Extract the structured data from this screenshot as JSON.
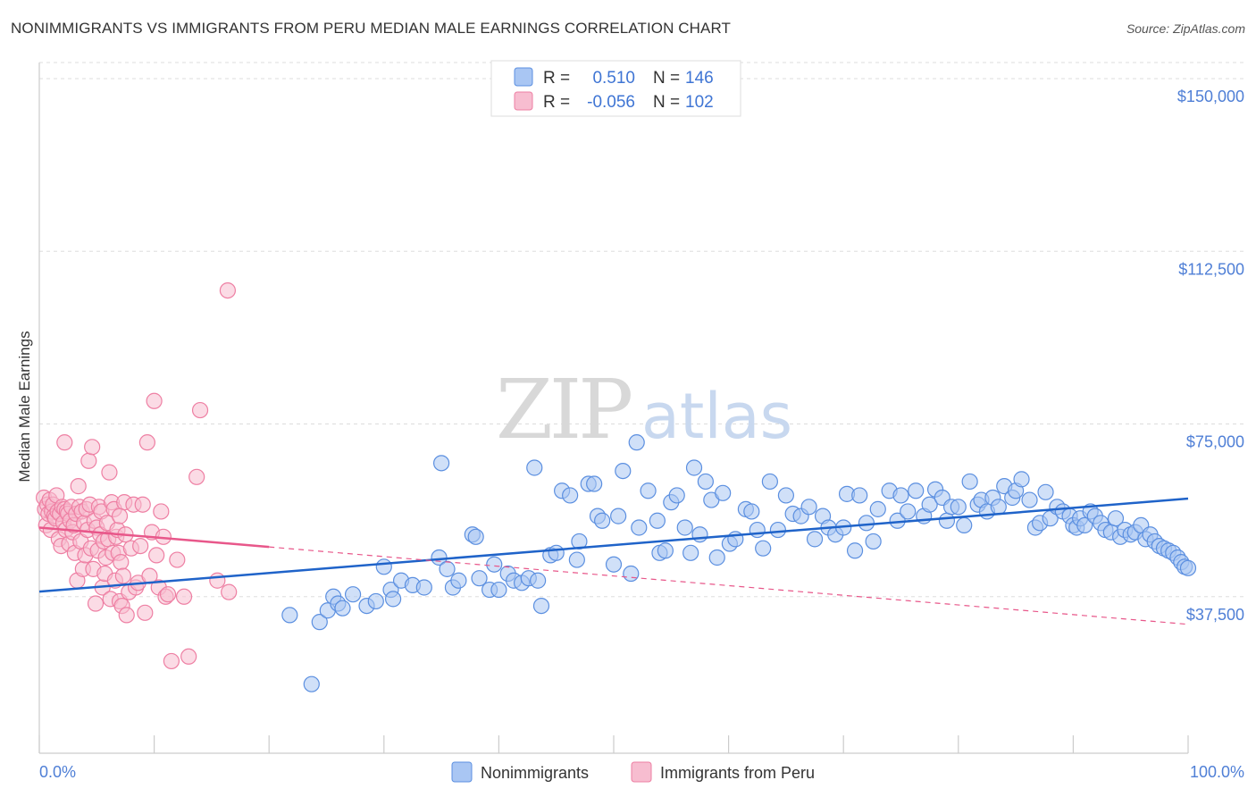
{
  "title": "NONIMMIGRANTS VS IMMIGRANTS FROM PERU MEDIAN MALE EARNINGS CORRELATION CHART",
  "source": "Source: ZipAtlas.com",
  "watermark": {
    "zip": "ZIP",
    "atlas": "atlas"
  },
  "colors": {
    "blue": "#5b8fe0",
    "blue_fill": "#a9c6f3",
    "blue_line": "#1f63c9",
    "pink": "#ee7fa3",
    "pink_fill": "#f7bdd0",
    "pink_line": "#e8578a",
    "tick_text": "#4f7fd6"
  },
  "legend_top": [
    {
      "r_label": "R =",
      "r_value": "0.510",
      "n_label": "N =",
      "n_value": "146"
    },
    {
      "r_label": "R =",
      "r_value": "-0.056",
      "n_label": "N =",
      "n_value": "102"
    }
  ],
  "legend_bottom": [
    "Nonimmigrants",
    "Immigrants from Peru"
  ],
  "chart_data": {
    "type": "scatter",
    "title": "NONIMMIGRANTS VS IMMIGRANTS FROM PERU MEDIAN MALE EARNINGS CORRELATION CHART",
    "xlabel": "",
    "ylabel": "Median Male Earnings",
    "x_tick_labels": [
      "0.0%",
      "100.0%"
    ],
    "y_tick_labels": [
      "$37,500",
      "$75,000",
      "$112,500",
      "$150,000"
    ],
    "y_ticks": [
      37500,
      75000,
      112500,
      150000
    ],
    "xlim": [
      0,
      100
    ],
    "ylim": [
      3500,
      153500
    ],
    "grid": true,
    "legend_position": "top-center",
    "series": [
      {
        "name": "Nonimmigrants",
        "stats": {
          "R": 0.51,
          "N": 146
        },
        "trend": {
          "x": [
            0,
            100
          ],
          "y": [
            38600,
            58800
          ]
        },
        "points": [
          [
            21.8,
            33500
          ],
          [
            23.7,
            18500
          ],
          [
            24.4,
            32000
          ],
          [
            25.1,
            34500
          ],
          [
            25.6,
            37500
          ],
          [
            26.0,
            36000
          ],
          [
            26.4,
            35000
          ],
          [
            27.3,
            38000
          ],
          [
            28.5,
            35500
          ],
          [
            29.3,
            36500
          ],
          [
            30.0,
            44000
          ],
          [
            30.6,
            39000
          ],
          [
            30.8,
            37000
          ],
          [
            31.5,
            41000
          ],
          [
            32.5,
            40000
          ],
          [
            33.5,
            39500
          ],
          [
            34.8,
            46000
          ],
          [
            35.0,
            66500
          ],
          [
            35.5,
            43500
          ],
          [
            36.0,
            39500
          ],
          [
            36.5,
            41000
          ],
          [
            37.7,
            51000
          ],
          [
            38.0,
            50500
          ],
          [
            38.3,
            41500
          ],
          [
            39.2,
            39000
          ],
          [
            39.6,
            44500
          ],
          [
            40.0,
            39000
          ],
          [
            40.8,
            42500
          ],
          [
            41.3,
            41000
          ],
          [
            42.0,
            40500
          ],
          [
            42.6,
            41500
          ],
          [
            43.1,
            65500
          ],
          [
            43.4,
            41000
          ],
          [
            43.7,
            35500
          ],
          [
            44.5,
            46500
          ],
          [
            45.0,
            47000
          ],
          [
            45.5,
            60500
          ],
          [
            46.2,
            59500
          ],
          [
            46.8,
            45500
          ],
          [
            47.0,
            49500
          ],
          [
            47.8,
            62000
          ],
          [
            48.3,
            62000
          ],
          [
            48.6,
            55000
          ],
          [
            49.0,
            54000
          ],
          [
            50.0,
            44500
          ],
          [
            50.4,
            55000
          ],
          [
            50.8,
            64800
          ],
          [
            51.5,
            42500
          ],
          [
            52.0,
            71000
          ],
          [
            52.2,
            52500
          ],
          [
            53.0,
            60500
          ],
          [
            53.8,
            54000
          ],
          [
            54.0,
            47000
          ],
          [
            54.5,
            47500
          ],
          [
            55.0,
            58000
          ],
          [
            55.5,
            59500
          ],
          [
            56.2,
            52500
          ],
          [
            56.7,
            47000
          ],
          [
            57.0,
            65500
          ],
          [
            57.5,
            51000
          ],
          [
            58.0,
            62500
          ],
          [
            58.5,
            58500
          ],
          [
            59.0,
            46000
          ],
          [
            59.5,
            60000
          ],
          [
            60.1,
            49000
          ],
          [
            60.6,
            50000
          ],
          [
            61.5,
            56500
          ],
          [
            62.0,
            56000
          ],
          [
            62.5,
            52000
          ],
          [
            63.0,
            48000
          ],
          [
            63.6,
            62500
          ],
          [
            64.3,
            52000
          ],
          [
            65.0,
            59500
          ],
          [
            65.6,
            55500
          ],
          [
            66.3,
            55000
          ],
          [
            67.0,
            57000
          ],
          [
            67.5,
            50000
          ],
          [
            68.2,
            55000
          ],
          [
            68.7,
            52500
          ],
          [
            69.3,
            51000
          ],
          [
            70.0,
            52500
          ],
          [
            70.3,
            59800
          ],
          [
            71.0,
            47500
          ],
          [
            71.4,
            59500
          ],
          [
            72.0,
            53500
          ],
          [
            72.6,
            49500
          ],
          [
            73.0,
            56500
          ],
          [
            74.0,
            60500
          ],
          [
            74.7,
            54000
          ],
          [
            75.0,
            59500
          ],
          [
            75.6,
            56000
          ],
          [
            76.3,
            60500
          ],
          [
            77.0,
            55000
          ],
          [
            77.5,
            57500
          ],
          [
            78.0,
            60800
          ],
          [
            78.6,
            59000
          ],
          [
            79.0,
            54000
          ],
          [
            79.4,
            57000
          ],
          [
            80.0,
            57000
          ],
          [
            80.5,
            53000
          ],
          [
            81.0,
            62500
          ],
          [
            81.7,
            57500
          ],
          [
            82.0,
            58500
          ],
          [
            82.5,
            56000
          ],
          [
            83.0,
            59000
          ],
          [
            83.5,
            57000
          ],
          [
            84.0,
            61500
          ],
          [
            84.7,
            59000
          ],
          [
            85.0,
            60500
          ],
          [
            85.5,
            63000
          ],
          [
            86.2,
            58500
          ],
          [
            86.7,
            52500
          ],
          [
            87.1,
            53500
          ],
          [
            87.6,
            60200
          ],
          [
            88.0,
            54500
          ],
          [
            88.6,
            57000
          ],
          [
            89.1,
            56000
          ],
          [
            89.7,
            55000
          ],
          [
            90.0,
            53000
          ],
          [
            90.3,
            52500
          ],
          [
            90.6,
            54500
          ],
          [
            91.0,
            53000
          ],
          [
            91.5,
            56000
          ],
          [
            91.9,
            55000
          ],
          [
            92.4,
            53500
          ],
          [
            92.8,
            52000
          ],
          [
            93.3,
            51500
          ],
          [
            93.7,
            54500
          ],
          [
            94.1,
            50500
          ],
          [
            94.5,
            52000
          ],
          [
            95.0,
            51000
          ],
          [
            95.4,
            51500
          ],
          [
            95.9,
            53000
          ],
          [
            96.3,
            50000
          ],
          [
            96.7,
            51000
          ],
          [
            97.1,
            49500
          ],
          [
            97.5,
            48500
          ],
          [
            97.9,
            48000
          ],
          [
            98.3,
            47500
          ],
          [
            98.7,
            47000
          ],
          [
            99.1,
            46000
          ],
          [
            99.4,
            45000
          ],
          [
            99.7,
            44000
          ],
          [
            100.0,
            43700
          ]
        ]
      },
      {
        "name": "Immigrants from Peru",
        "stats": {
          "R": -0.056,
          "N": 102
        },
        "trend": {
          "x": [
            0,
            20
          ],
          "y": [
            52500,
            48300
          ]
        },
        "trend_extension": {
          "x": [
            20,
            100
          ],
          "y": [
            48300,
            31500
          ]
        },
        "points": [
          [
            0.4,
            59000
          ],
          [
            0.5,
            56500
          ],
          [
            0.6,
            53000
          ],
          [
            0.7,
            57500
          ],
          [
            0.8,
            55500
          ],
          [
            0.9,
            58500
          ],
          [
            1.0,
            52000
          ],
          [
            1.1,
            56000
          ],
          [
            1.2,
            57500
          ],
          [
            1.3,
            55000
          ],
          [
            1.4,
            54500
          ],
          [
            1.5,
            59500
          ],
          [
            1.6,
            56000
          ],
          [
            1.7,
            50000
          ],
          [
            1.8,
            55500
          ],
          [
            1.9,
            48500
          ],
          [
            2.0,
            57000
          ],
          [
            2.1,
            53500
          ],
          [
            2.2,
            56500
          ],
          [
            2.3,
            52000
          ],
          [
            2.4,
            56000
          ],
          [
            2.5,
            55500
          ],
          [
            2.6,
            49000
          ],
          [
            2.7,
            54000
          ],
          [
            2.8,
            57000
          ],
          [
            2.9,
            51500
          ],
          [
            3.0,
            53000
          ],
          [
            3.1,
            47000
          ],
          [
            3.2,
            55500
          ],
          [
            3.3,
            41000
          ],
          [
            3.4,
            61500
          ],
          [
            3.5,
            57000
          ],
          [
            3.6,
            49500
          ],
          [
            3.7,
            56000
          ],
          [
            3.8,
            43500
          ],
          [
            3.9,
            53500
          ],
          [
            4.0,
            46500
          ],
          [
            4.1,
            56500
          ],
          [
            4.2,
            52000
          ],
          [
            4.3,
            67000
          ],
          [
            4.4,
            57500
          ],
          [
            4.5,
            48000
          ],
          [
            4.6,
            70000
          ],
          [
            4.7,
            43500
          ],
          [
            4.8,
            54000
          ],
          [
            4.9,
            36000
          ],
          [
            5.0,
            52500
          ],
          [
            5.1,
            47500
          ],
          [
            5.2,
            57000
          ],
          [
            5.3,
            51000
          ],
          [
            5.4,
            56000
          ],
          [
            5.5,
            39500
          ],
          [
            5.6,
            49500
          ],
          [
            5.7,
            42500
          ],
          [
            5.8,
            46000
          ],
          [
            5.9,
            53500
          ],
          [
            6.0,
            50000
          ],
          [
            6.1,
            64500
          ],
          [
            6.2,
            37000
          ],
          [
            6.3,
            58000
          ],
          [
            6.4,
            47000
          ],
          [
            6.5,
            56500
          ],
          [
            6.6,
            41000
          ],
          [
            6.7,
            50500
          ],
          [
            6.8,
            52000
          ],
          [
            6.9,
            47000
          ],
          [
            7.0,
            36500
          ],
          [
            7.1,
            45000
          ],
          [
            7.2,
            35500
          ],
          [
            7.3,
            42000
          ],
          [
            7.4,
            58000
          ],
          [
            7.5,
            51000
          ],
          [
            7.6,
            33500
          ],
          [
            7.8,
            38500
          ],
          [
            8.0,
            48000
          ],
          [
            8.2,
            57500
          ],
          [
            8.4,
            39500
          ],
          [
            8.6,
            40500
          ],
          [
            8.8,
            48500
          ],
          [
            9.0,
            57500
          ],
          [
            9.2,
            34000
          ],
          [
            9.4,
            71000
          ],
          [
            9.6,
            42000
          ],
          [
            9.8,
            51500
          ],
          [
            10.0,
            80000
          ],
          [
            10.2,
            46500
          ],
          [
            10.4,
            39500
          ],
          [
            10.6,
            56000
          ],
          [
            10.8,
            50500
          ],
          [
            11.0,
            37500
          ],
          [
            11.2,
            38000
          ],
          [
            11.5,
            23500
          ],
          [
            12.0,
            45500
          ],
          [
            12.6,
            37500
          ],
          [
            13.0,
            24500
          ],
          [
            13.7,
            63500
          ],
          [
            14.0,
            78000
          ],
          [
            15.5,
            41000
          ],
          [
            16.5,
            38500
          ],
          [
            16.4,
            104000
          ],
          [
            2.2,
            71000
          ],
          [
            7.0,
            55000
          ]
        ]
      }
    ]
  }
}
